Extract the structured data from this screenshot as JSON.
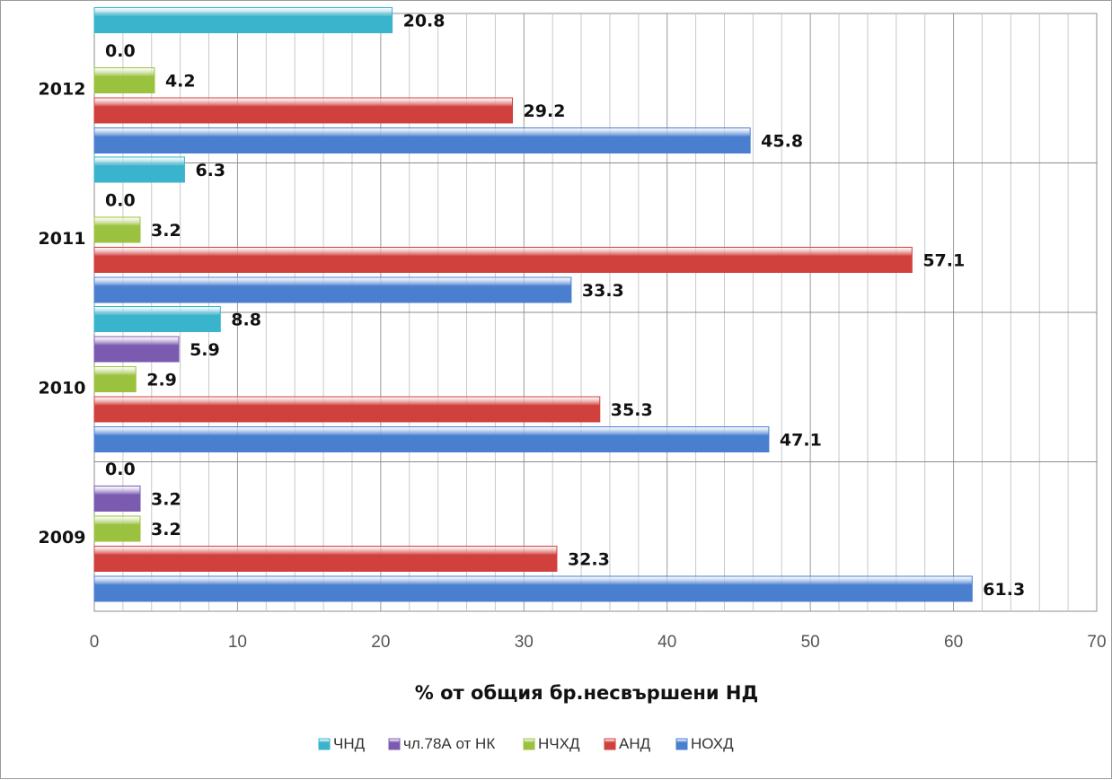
{
  "chart_data": {
    "type": "bar",
    "orientation": "horizontal",
    "categories": [
      "2009",
      "2010",
      "2011",
      "2012"
    ],
    "series": [
      {
        "name": "НОХД",
        "values": [
          61.3,
          47.1,
          33.3,
          45.8
        ],
        "labels": [
          "61.3",
          "47.1",
          "33.3",
          "45.8"
        ],
        "color": "#4a7fd0"
      },
      {
        "name": "АНД",
        "values": [
          32.3,
          35.3,
          57.1,
          29.2
        ],
        "labels": [
          "32.3",
          "35.3",
          "57.1",
          "29.2"
        ],
        "color": "#d0403d"
      },
      {
        "name": "НЧХД",
        "values": [
          3.2,
          2.9,
          3.2,
          4.2
        ],
        "labels": [
          "3.2",
          "2.9",
          "3.2",
          "4.2"
        ],
        "color": "#9bc23f"
      },
      {
        "name": "чл.78А от НК",
        "values": [
          3.2,
          5.9,
          0.0,
          0.0
        ],
        "labels": [
          "3.2",
          "5.9",
          "0.0",
          "0.0"
        ],
        "color": "#7b5bb0"
      },
      {
        "name": "ЧНД",
        "values": [
          0.0,
          8.8,
          6.3,
          20.8
        ],
        "labels": [
          "0.0",
          "8.8",
          "6.3",
          "20.8"
        ],
        "color": "#3ab3cc"
      }
    ],
    "xlim": [
      0,
      70
    ],
    "xticks": [
      "0",
      "10",
      "20",
      "30",
      "40",
      "50",
      "60",
      "70"
    ],
    "xlabel": "% от общия бр.несвършени НД",
    "ylabel": "",
    "title": "",
    "grid": true,
    "legend_position": "bottom",
    "legend_order": [
      "ЧНД",
      "чл.78А от НК",
      "НЧХД",
      "АНД",
      "НОХД"
    ]
  }
}
